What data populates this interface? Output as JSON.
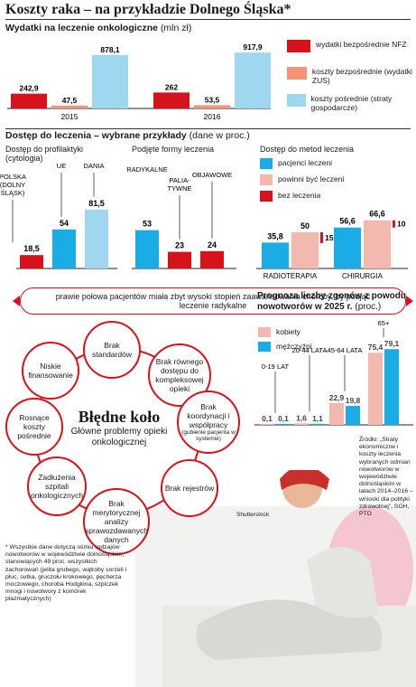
{
  "header": {
    "title": "Koszty raka – na przykładzie Dolnego Śląska*",
    "spend_title": "Wydatki na leczenie onkologiczne",
    "spend_unit": "(mln zł)"
  },
  "colors": {
    "red": "#d6121c",
    "salmon": "#f2947a",
    "light_blue": "#9fd6f0",
    "cyan": "#1aace4",
    "pink": "#f4b9ae"
  },
  "legend_spend": [
    {
      "label": "wydatki bezpośrednie NFZ",
      "color": "#d6121c"
    },
    {
      "label": "koszty bezpośrednie (wydatki ZUS)",
      "color": "#f2947a"
    },
    {
      "label": "koszty pośrednie (straty gospodarcze)",
      "color": "#9fd6f0"
    }
  ],
  "access": {
    "title": "Dostęp do leczenia – wybrane przykłady",
    "unit": "(dane w proc.)",
    "prof_title": "Dostęp do profilaktyki (cytologia)",
    "forms_title": "Podjęte formy leczenia",
    "methods_title": "Dostęp do metod leczenia"
  },
  "legend_methods": [
    {
      "label": "pacjenci leczeni",
      "color": "#1aace4"
    },
    {
      "label": "powinni być leczeni",
      "color": "#f4b9ae"
    },
    {
      "label": "bez leczenia",
      "color": "#d6121c"
    }
  ],
  "banner": {
    "text": "prawie połowa pacjentów miała zbyt wysoki stopień zaawansowania choroby, by podjąć leczenie radykalne"
  },
  "circle": {
    "title": "Błędne koło",
    "subtitle": "Główne problemy opieki onkologicznej",
    "nodes": [
      "Brak standardów",
      "Brak równego dostępu do kompleksowej opieki",
      "Brak koordynacji i współpracy",
      "(gubienie pacjenta w systemie)",
      "Brak rejestrów",
      "Brak merytorycznej analizy sprawozdawanych danych",
      "Zadłużenia szpitali onkologicznych",
      "Rosnące koszty pośrednie",
      "Niskie finansowanie"
    ]
  },
  "forecast": {
    "title": "Prognoza liczby zgonów z powodu nowotworów w 2025 r.",
    "unit": "(proc.)",
    "legend": [
      {
        "label": "kobiety",
        "color": "#f4b9ae"
      },
      {
        "label": "mężczyźni",
        "color": "#1aace4"
      }
    ]
  },
  "source_note": "Źródło: „Straty ekonomiczne i koszty leczenia wybranych odmian nowotworów w województwie dolnośląskim w latach 2014–2016 – wnioski dla polityki zdrowotnej”, SGH, PTO",
  "credit": "Shutterstock",
  "footnote": "* Wszystkie dane dotyczą ośmiu rodzajów nowotworów w województwie dolnośląskim, stanowiących 49 proc. wszystkich zachorowań (jelita grubego, wątroby sorzeli i płuc, sutka, gruczołu krokowego, pęcherza moczowego, choroba Hodgkina, szpiczek mnogi i nowotwory z komórek plazmatycznych)",
  "chart_data": [
    {
      "type": "bar",
      "title": "Wydatki na leczenie onkologiczne (mln zł)",
      "categories": [
        "2015",
        "2016"
      ],
      "series": [
        {
          "name": "wydatki bezpośrednie NFZ",
          "values": [
            242.9,
            262
          ]
        },
        {
          "name": "koszty bezpośrednie (wydatki ZUS)",
          "values": [
            47.5,
            53.5
          ]
        },
        {
          "name": "koszty pośrednie (straty gospodarcze)",
          "values": [
            878.1,
            917.9
          ]
        }
      ],
      "value_labels": [
        [
          "242,9",
          "262"
        ],
        [
          "47,5",
          "53,5"
        ],
        [
          "878,1",
          "917,9"
        ]
      ],
      "ylim": [
        0,
        950
      ]
    },
    {
      "type": "bar",
      "title": "Dostęp do profilaktyki (cytologia)",
      "categories": [
        "POLSKA (DOLNY ŚLĄSK)",
        "UE",
        "DANIA"
      ],
      "values": [
        18.5,
        54,
        81.5
      ],
      "value_labels": [
        "18,5",
        "54",
        "81,5"
      ],
      "ylim": [
        0,
        100
      ]
    },
    {
      "type": "bar",
      "title": "Podjęte formy leczenia",
      "categories": [
        "RADYKALNE",
        "PALIATYWNE",
        "OBJAWOWE"
      ],
      "values": [
        53,
        23,
        24
      ],
      "ylim": [
        0,
        100
      ]
    },
    {
      "type": "bar",
      "title": "Dostęp do metod leczenia",
      "categories": [
        "RADIOTERAPIA",
        "CHIRURGIA"
      ],
      "series": [
        {
          "name": "pacjenci leczeni",
          "values": [
            35.8,
            56.6
          ]
        },
        {
          "name": "powinni być leczeni",
          "values": [
            50,
            66.6
          ]
        },
        {
          "name": "bez leczenia",
          "values": [
            15,
            10
          ]
        }
      ],
      "value_labels": [
        [
          "35,8",
          "56,6"
        ],
        [
          "50",
          "66,6"
        ],
        [
          "15",
          "10"
        ]
      ],
      "ylim": [
        0,
        100
      ]
    },
    {
      "type": "bar",
      "title": "Prognoza liczby zgonów z powodu nowotworów w 2025 r. (proc.)",
      "categories": [
        "0-19 LAT",
        "20-44 LATA",
        "45-64 LATA",
        "65+"
      ],
      "series": [
        {
          "name": "kobiety",
          "values": [
            0.1,
            1.6,
            22.9,
            75.4
          ]
        },
        {
          "name": "mężczyźni",
          "values": [
            0.1,
            1.1,
            19.8,
            79.1
          ]
        }
      ],
      "value_labels": [
        [
          "0,1",
          "1,6",
          "22,9",
          "75,4"
        ],
        [
          "0,1",
          "1,1",
          "19,8",
          "79,1"
        ]
      ],
      "ylim": [
        0,
        85
      ]
    }
  ]
}
